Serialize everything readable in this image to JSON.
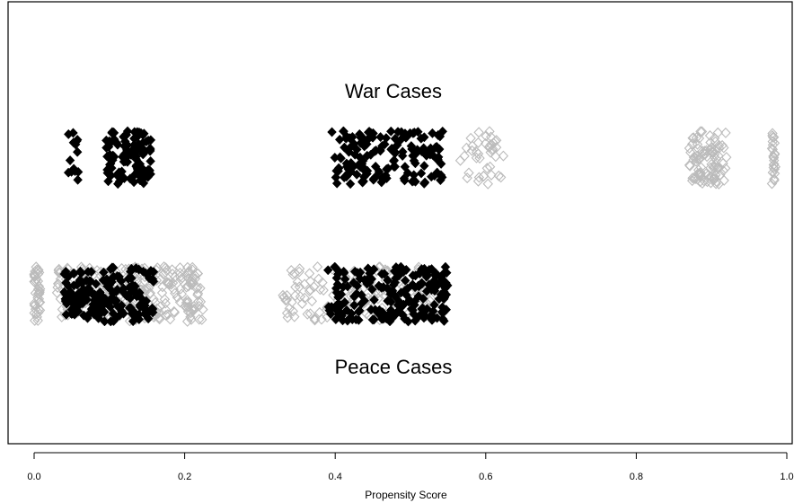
{
  "chart_data": {
    "type": "scatter",
    "title": "",
    "xlabel": "Propensity Score",
    "ylabel": "",
    "xlim": [
      0.0,
      1.0
    ],
    "x_ticks": [
      "0.0",
      "0.2",
      "0.4",
      "0.6",
      "0.8",
      "1.0"
    ],
    "grid": false,
    "rows": [
      {
        "label": "War Cases",
        "position": "top"
      },
      {
        "label": "Peace Cases",
        "position": "bottom"
      }
    ],
    "marker_style": {
      "matched": {
        "shape": "filled-diamond",
        "color": "#000000"
      },
      "unmatched": {
        "shape": "open-diamond",
        "color": "#bbbbbb"
      }
    },
    "series": [
      {
        "group": "War Cases",
        "matched": false,
        "clusters": [
          {
            "x_min": 0.565,
            "x_max": 0.625,
            "count": 40
          },
          {
            "x_min": 0.87,
            "x_max": 0.92,
            "count": 90
          },
          {
            "x_min": 0.98,
            "x_max": 0.985,
            "count": 25
          }
        ]
      },
      {
        "group": "War Cases",
        "matched": true,
        "clusters": [
          {
            "x_min": 0.045,
            "x_max": 0.06,
            "count": 14
          },
          {
            "x_min": 0.095,
            "x_max": 0.155,
            "count": 110
          },
          {
            "x_min": 0.395,
            "x_max": 0.545,
            "count": 160
          }
        ]
      },
      {
        "group": "Peace Cases",
        "matched": false,
        "clusters": [
          {
            "x_min": 0.0,
            "x_max": 0.008,
            "count": 40
          },
          {
            "x_min": 0.03,
            "x_max": 0.225,
            "count": 260
          },
          {
            "x_min": 0.33,
            "x_max": 0.535,
            "count": 150
          }
        ]
      },
      {
        "group": "Peace Cases",
        "matched": true,
        "clusters": [
          {
            "x_min": 0.04,
            "x_max": 0.16,
            "count": 170
          },
          {
            "x_min": 0.39,
            "x_max": 0.55,
            "count": 200
          }
        ]
      }
    ]
  }
}
